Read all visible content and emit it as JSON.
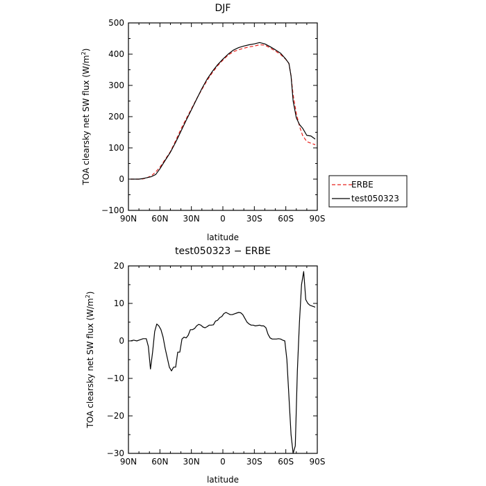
{
  "chart_data": [
    {
      "type": "line",
      "title": "DJF",
      "xlabel": "latitude",
      "ylabel_main": "TOA clearsky net SW flux (W/m",
      "ylabel_sup": "2",
      "ylabel_close": ")",
      "xlim": [
        90,
        -90
      ],
      "ylim": [
        -100,
        500
      ],
      "x_ticks": [
        90,
        60,
        30,
        0,
        -30,
        -60,
        -90
      ],
      "x_tick_labels": [
        "90N",
        "60N",
        "30N",
        "0",
        "30S",
        "60S",
        "90S"
      ],
      "y_ticks": [
        -100,
        0,
        100,
        200,
        300,
        400,
        500
      ],
      "y_tick_labels": [
        "−100",
        "0",
        "100",
        "200",
        "300",
        "400",
        "500"
      ],
      "legend_position": "right",
      "series": [
        {
          "name": "ERBE",
          "color": "#e8201c",
          "dash": "dashed",
          "x": [
            88,
            80,
            76,
            72,
            68,
            64,
            60,
            55,
            50,
            45,
            40,
            35,
            30,
            25,
            20,
            15,
            10,
            5,
            0,
            -5,
            -10,
            -15,
            -20,
            -25,
            -30,
            -35,
            -40,
            -45,
            -50,
            -55,
            -60,
            -63,
            -65,
            -67,
            -70,
            -73,
            -76,
            -80,
            -84,
            -88
          ],
          "y": [
            0,
            0,
            1,
            5,
            11,
            23,
            38,
            63,
            88,
            123,
            160,
            193,
            225,
            257,
            287,
            316,
            341,
            363,
            381,
            397,
            408,
            414,
            419,
            423,
            426,
            430,
            429,
            420,
            410,
            399,
            383,
            370,
            330,
            270,
            210,
            170,
            140,
            120,
            115,
            110
          ]
        },
        {
          "name": "test050323",
          "color": "#000000",
          "dash": "solid",
          "x": [
            88,
            80,
            76,
            72,
            68,
            64,
            60,
            55,
            50,
            45,
            40,
            35,
            30,
            25,
            20,
            15,
            10,
            5,
            0,
            -5,
            -10,
            -15,
            -20,
            -25,
            -30,
            -35,
            -40,
            -45,
            -50,
            -55,
            -60,
            -63,
            -65,
            -67,
            -70,
            -73,
            -76,
            -80,
            -84,
            -88
          ],
          "y": [
            0,
            0,
            2,
            5,
            8,
            15,
            33,
            60,
            86,
            118,
            153,
            188,
            222,
            256,
            290,
            320,
            345,
            366,
            384,
            400,
            413,
            421,
            426,
            430,
            433,
            437,
            433,
            424,
            414,
            403,
            384,
            370,
            330,
            250,
            196,
            175,
            163,
            140,
            138,
            128
          ]
        }
      ]
    },
    {
      "type": "line",
      "title": "test050323 − ERBE",
      "xlabel": "latitude",
      "ylabel_main": "TOA clearsky net SW flux (W/m",
      "ylabel_sup": "2",
      "ylabel_close": ")",
      "xlim": [
        90,
        -90
      ],
      "ylim": [
        -30,
        20
      ],
      "x_ticks": [
        90,
        60,
        30,
        0,
        -30,
        -60,
        -90
      ],
      "x_tick_labels": [
        "90N",
        "60N",
        "30N",
        "0",
        "30S",
        "60S",
        "90S"
      ],
      "y_ticks": [
        -30,
        -20,
        -10,
        0,
        10,
        20
      ],
      "y_tick_labels": [
        "−30",
        "−20",
        "−10",
        "0",
        "10",
        "20"
      ],
      "series": [
        {
          "color": "#000000",
          "dash": "solid",
          "x": [
            88,
            85,
            82,
            79,
            76,
            73,
            71,
            69,
            67,
            65,
            63,
            61,
            59,
            57,
            55,
            53,
            51,
            49,
            47,
            45,
            43,
            41,
            39,
            37,
            35,
            33,
            31,
            29,
            27,
            25,
            23,
            21,
            19,
            17,
            15,
            13,
            11,
            9,
            7,
            5,
            3,
            1,
            -1,
            -3,
            -5,
            -7,
            -9,
            -11,
            -13,
            -15,
            -17,
            -19,
            -21,
            -23,
            -25,
            -27,
            -29,
            -31,
            -33,
            -35,
            -37,
            -39,
            -41,
            -43,
            -45,
            -47,
            -49,
            -51,
            -53,
            -55,
            -57,
            -59,
            -61,
            -63,
            -65,
            -67,
            -69,
            -71,
            -73,
            -75,
            -77,
            -79,
            -81,
            -83,
            -86,
            -88
          ],
          "y": [
            0,
            0.2,
            0,
            0.3,
            0.6,
            0.6,
            -1.5,
            -7.5,
            -3,
            2.5,
            4.5,
            4,
            3,
            1,
            -2,
            -4.5,
            -7,
            -8,
            -7,
            -7,
            -3,
            -3,
            0.5,
            1,
            0.8,
            1.5,
            3,
            3,
            3.3,
            4,
            4.4,
            4.2,
            3.7,
            3.5,
            3.8,
            4.2,
            4.2,
            4.3,
            5.3,
            5.5,
            6.2,
            6.5,
            7.3,
            7.6,
            7.3,
            7.0,
            7.0,
            7.2,
            7.4,
            7.6,
            7.5,
            7.0,
            6.0,
            5.0,
            4.5,
            4.2,
            4.2,
            4.0,
            4.1,
            4.2,
            4.0,
            4.0,
            3.5,
            1.8,
            0.8,
            0.5,
            0.5,
            0.5,
            0.6,
            0.5,
            0.2,
            0.0,
            -5,
            -15,
            -25,
            -30,
            -28,
            -8,
            5,
            15,
            18.5,
            11,
            10,
            9.5,
            9.2,
            9.0
          ]
        }
      ]
    }
  ]
}
